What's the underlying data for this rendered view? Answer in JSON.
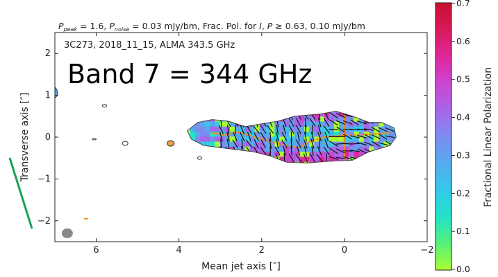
{
  "chart_data": {
    "type": "image",
    "header": "P_peak = 1.6, P_noise = 0.03 mJy/bm, Frac. Pol. for I, P ≥ 0.63, 0.10 mJy/bm",
    "header_parts": {
      "peak_sub": "peak",
      "peak_val": " = 1.6, ",
      "noise_sub": "noise",
      "noise_val": " = 0.03 mJy/bm, Frac. Pol. for ",
      "i_sym": "I",
      "comma": ", ",
      "p_sym": "P",
      "threshold": " ≥  0.63, 0.10 mJy/bm"
    },
    "inset_label": "3C273, 2018_11_15, ALMA 343.5 GHz",
    "annotation": "Band 7 = 344 GHz",
    "xlabel": "Mean jet axis [″]",
    "ylabel": "Transverse axis [″]",
    "xlim": [
      7,
      -2
    ],
    "ylim": [
      -2.5,
      2.5
    ],
    "x_ticks": [
      6,
      4,
      2,
      0,
      -2
    ],
    "x_tick_labels": [
      "6",
      "4",
      "2",
      "0",
      "−2"
    ],
    "y_ticks": [
      2,
      1,
      0,
      -1,
      -2
    ],
    "y_tick_labels": [
      "2",
      "1",
      "0",
      "−1",
      "−2"
    ],
    "colorbar": {
      "label": "Fractional Linear Polarization",
      "range": [
        0.0,
        0.7
      ],
      "ticks": [
        0.0,
        0.1,
        0.2,
        0.3,
        0.4,
        0.5,
        0.6,
        0.7
      ],
      "tick_labels": [
        "0.0",
        "0.1",
        "0.2",
        "0.3",
        "0.4",
        "0.5",
        "0.6",
        "0.7"
      ],
      "colors": [
        "#aaff33",
        "#55f07a",
        "#22e3c8",
        "#35c8e8",
        "#55aaee",
        "#7e8cf0",
        "#a865e8",
        "#cc45d0",
        "#e0279a",
        "#d61a5a",
        "#c8102e"
      ]
    },
    "jet": {
      "x_extent": [
        3.8,
        -1.2
      ],
      "y_extent": [
        -0.65,
        0.65
      ],
      "core_x": 0.0
    },
    "beam": {
      "x": 6.7,
      "y": -2.3
    }
  }
}
